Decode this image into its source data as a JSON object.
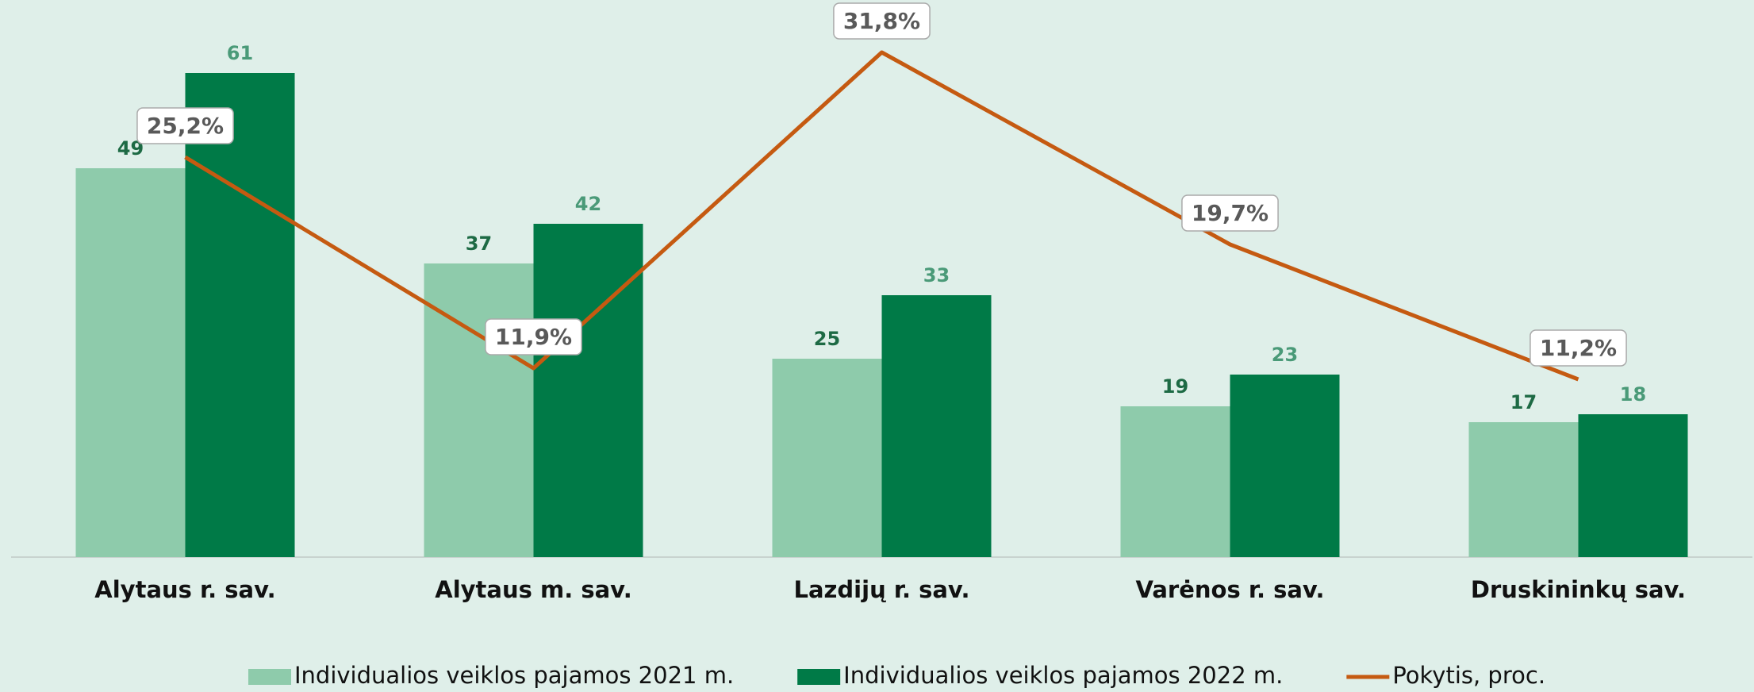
{
  "chart_data": {
    "type": "bar",
    "categories": [
      "Alytaus r. sav.",
      "Alytaus m. sav.",
      "Lazdijų r. sav.",
      "Varėnos r. sav.",
      "Druskininkų sav."
    ],
    "series": [
      {
        "name": "Individualios veiklos pajamos 2021 m.",
        "type": "bar",
        "color": "#8ecbab",
        "label_color": "#1d6a44",
        "values": [
          49,
          37,
          25,
          19,
          17
        ]
      },
      {
        "name": "Individualios veiklos pajamos 2022 m.",
        "type": "bar",
        "color": "#007a47",
        "label_color": "#4a9a78",
        "values": [
          61,
          42,
          33,
          23,
          18
        ]
      },
      {
        "name": "Pokytis, proc.",
        "type": "line",
        "axis": "y2",
        "color": "#c55a11",
        "values": [
          25.2,
          11.9,
          31.8,
          19.7,
          11.2
        ],
        "value_labels": [
          "25,2%",
          "11,9%",
          "31,8%",
          "19,7%",
          "11,2%"
        ]
      }
    ],
    "ylim": [
      0,
      70
    ],
    "y2lim": [
      0,
      35
    ],
    "legend": "bottom"
  }
}
